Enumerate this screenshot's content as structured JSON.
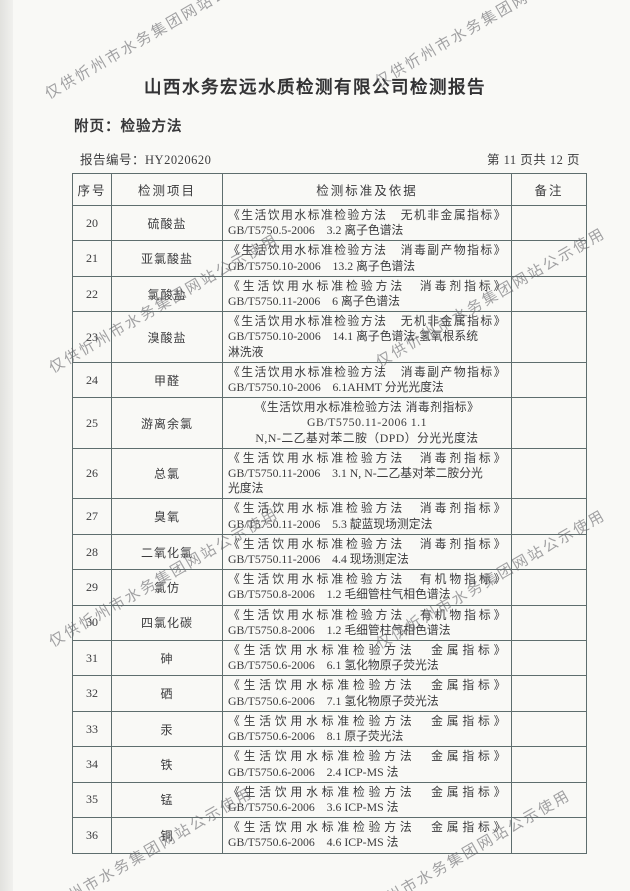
{
  "page": {
    "title": "山西水务宏远水质检测有限公司检测报告",
    "subtitle": "附页：检验方法",
    "report_no_label": "报告编号：",
    "report_no": "HY2020620",
    "page_indicator": "第 11 页共 12 页"
  },
  "watermark": {
    "text": "仅供忻州市水务集团网站公示使用"
  },
  "table": {
    "headers": [
      "序号",
      "检测项目",
      "检测标准及依据",
      "备注"
    ],
    "rows": [
      {
        "no": "20",
        "item": "硫酸盐",
        "standard_lines": [
          "《生活饮用水标准检验方法　无机非金属指标》",
          "GB/T5750.5-2006　3.2 离子色谱法"
        ],
        "note": "",
        "centered": false
      },
      {
        "no": "21",
        "item": "亚氯酸盐",
        "standard_lines": [
          "《生活饮用水标准检验方法　消毒副产物指标》",
          "GB/T5750.10-2006　13.2 离子色谱法"
        ],
        "note": "",
        "centered": false
      },
      {
        "no": "22",
        "item": "氯酸盐",
        "standard_lines": [
          "《生活饮用水标准检验方法　消毒剂指标》",
          "GB/T5750.11-2006　6 离子色谱法"
        ],
        "note": "",
        "centered": false
      },
      {
        "no": "23",
        "item": "溴酸盐",
        "standard_lines": [
          "《生活饮用水标准检验方法　无机非金属指标》",
          "GB/T5750.10-2006　14.1 离子色谱法-氢氧根系统",
          "淋洗液"
        ],
        "note": "",
        "centered": false
      },
      {
        "no": "24",
        "item": "甲醛",
        "standard_lines": [
          "《生活饮用水标准检验方法　消毒副产物指标》",
          "GB/T5750.10-2006　6.1AHMT 分光光度法"
        ],
        "note": "",
        "centered": false
      },
      {
        "no": "25",
        "item": "游离余氯",
        "standard_lines": [
          "《生活饮用水标准检验方法 消毒剂指标》",
          "GB/T5750.11-2006 1.1",
          "N,N-二乙基对苯二胺（DPD）分光光度法"
        ],
        "note": "",
        "centered": true
      },
      {
        "no": "26",
        "item": "总氯",
        "standard_lines": [
          "《生活饮用水标准检验方法　消毒剂指标》",
          "GB/T5750.11-2006　3.1 N, N-二乙基对苯二胺分光",
          "光度法"
        ],
        "note": "",
        "centered": false
      },
      {
        "no": "27",
        "item": "臭氧",
        "standard_lines": [
          "《生活饮用水标准检验方法　消毒剂指标》",
          "GB/T5750.11-2006　5.3 靛蓝现场测定法"
        ],
        "note": "",
        "centered": false
      },
      {
        "no": "28",
        "item": "二氧化氯",
        "standard_lines": [
          "《生活饮用水标准检验方法　消毒剂指标》",
          "GB/T5750.11-2006　4.4 现场测定法"
        ],
        "note": "",
        "centered": false
      },
      {
        "no": "29",
        "item": "氯仿",
        "standard_lines": [
          "《生活饮用水标准检验方法　有机物指标》",
          "GB/T5750.8-2006　1.2 毛细管柱气相色谱法"
        ],
        "note": "",
        "centered": false
      },
      {
        "no": "30",
        "item": "四氯化碳",
        "standard_lines": [
          "《生活饮用水标准检验方法　有机物指标》",
          "GB/T5750.8-2006　1.2 毛细管柱气相色谱法"
        ],
        "note": "",
        "centered": false
      },
      {
        "no": "31",
        "item": "砷",
        "standard_lines": [
          "《生活饮用水标准检验方法　金属指标》",
          "GB/T5750.6-2006　6.1 氢化物原子荧光法"
        ],
        "note": "",
        "centered": false
      },
      {
        "no": "32",
        "item": "硒",
        "standard_lines": [
          "《生活饮用水标准检验方法　金属指标》",
          "GB/T5750.6-2006　7.1 氢化物原子荧光法"
        ],
        "note": "",
        "centered": false
      },
      {
        "no": "33",
        "item": "汞",
        "standard_lines": [
          "《生活饮用水标准检验方法　金属指标》",
          "GB/T5750.6-2006　8.1 原子荧光法"
        ],
        "note": "",
        "centered": false
      },
      {
        "no": "34",
        "item": "铁",
        "standard_lines": [
          "《生活饮用水标准检验方法　金属指标》",
          "GB/T5750.6-2006　2.4 ICP-MS 法"
        ],
        "note": "",
        "centered": false
      },
      {
        "no": "35",
        "item": "锰",
        "standard_lines": [
          "《生活饮用水标准检验方法　金属指标》",
          "GB/T5750.6-2006　3.6 ICP-MS 法"
        ],
        "note": "",
        "centered": false
      },
      {
        "no": "36",
        "item": "铜",
        "standard_lines": [
          "《生活饮用水标准检验方法　金属指标》",
          "GB/T5750.6-2006　4.6 ICP-MS 法"
        ],
        "note": "",
        "centered": false
      }
    ]
  }
}
